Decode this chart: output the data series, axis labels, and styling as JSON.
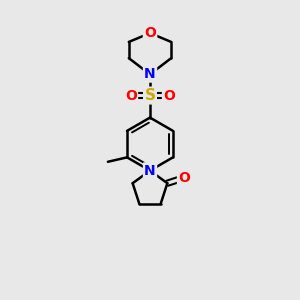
{
  "background_color": "#e8e8e8",
  "bond_color": "#000000",
  "atom_colors": {
    "O": "#ff0000",
    "N": "#0000ff",
    "S": "#ccaa00",
    "C": "#000000"
  },
  "line_width": 1.8,
  "figsize": [
    3.0,
    3.0
  ],
  "dpi": 100,
  "bx": 5.0,
  "by": 5.2,
  "br": 0.9
}
